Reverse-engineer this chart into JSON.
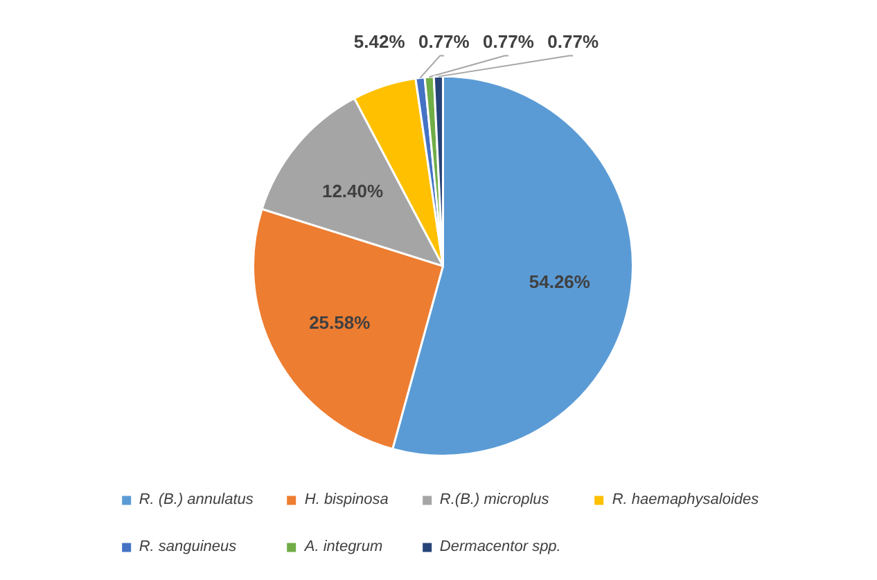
{
  "chart_data": {
    "type": "pie",
    "categories": [
      "R. (B.) annulatus",
      "H. bispinosa",
      "R.(B.) microplus",
      "R. haemaphysaloides",
      "R. sanguineus",
      "A. integrum",
      "Dermacentor spp."
    ],
    "values": [
      54.26,
      25.58,
      12.4,
      5.42,
      0.77,
      0.77,
      0.77
    ],
    "value_labels": [
      "54.26%",
      "25.58%",
      "12.40%",
      "5.42%",
      "0.77%",
      "0.77%",
      "0.77%"
    ],
    "colors": [
      "#5b9bd5",
      "#ed7d31",
      "#a5a5a5",
      "#ffc000",
      "#4472c4",
      "#70ad47",
      "#264478"
    ],
    "legend": "bottom"
  }
}
